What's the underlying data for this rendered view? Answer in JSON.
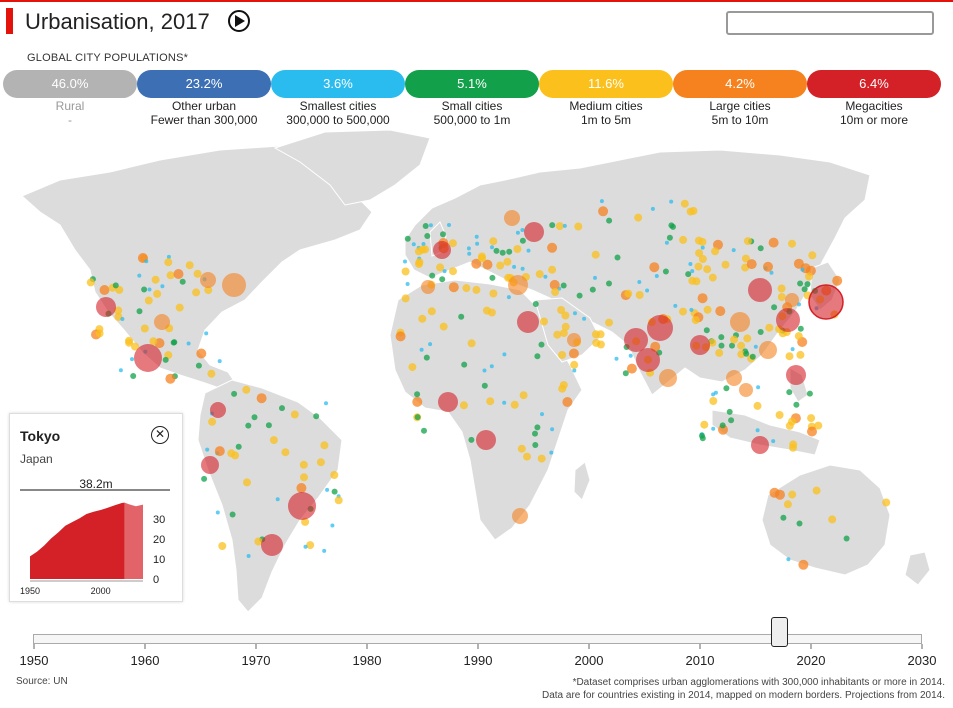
{
  "title": "Urbanisation, 2017",
  "search": {
    "value": ""
  },
  "subtitle": "GLOBAL CITY POPULATIONS*",
  "categories": [
    {
      "pct": "46.0%",
      "name": "Rural",
      "range": "-",
      "color": "#b3b3b3"
    },
    {
      "pct": "23.2%",
      "name": "Other urban",
      "range": "Fewer than 300,000",
      "color": "#3d6fb4"
    },
    {
      "pct": "3.6%",
      "name": "Smallest cities",
      "range": "300,000 to 500,000",
      "color": "#2bbcef"
    },
    {
      "pct": "5.1%",
      "name": "Small cities",
      "range": "500,000 to 1m",
      "color": "#12a14a"
    },
    {
      "pct": "11.6%",
      "name": "Medium cities",
      "range": "1m to 5m",
      "color": "#fbc01c"
    },
    {
      "pct": "4.2%",
      "name": "Large cities",
      "range": "5m to 10m",
      "color": "#f5821f"
    },
    {
      "pct": "6.4%",
      "name": "Megacities",
      "range": "10m or more",
      "color": "#d42027"
    }
  ],
  "panel": {
    "city": "Tokyo",
    "country": "Japan",
    "value": "38.2m",
    "chart_data": {
      "type": "area",
      "x": [
        1950,
        1955,
        1960,
        1965,
        1970,
        1975,
        1980,
        1985,
        1990,
        1995,
        2000,
        2005,
        2010,
        2015,
        2017,
        2020,
        2025,
        2030
      ],
      "y": [
        11.3,
        13.7,
        16.7,
        20.3,
        23.3,
        26.6,
        28.5,
        30.3,
        32.5,
        33.6,
        34.5,
        35.6,
        36.9,
        38.0,
        38.2,
        37.4,
        36.4,
        37.2
      ],
      "current_x": 2017,
      "ylim": [
        0,
        40
      ],
      "yticks": [
        "30",
        "20",
        "10",
        "0"
      ],
      "xticks": [
        "1950",
        "2000"
      ]
    }
  },
  "timeline": {
    "years": [
      "1950",
      "1960",
      "1970",
      "1980",
      "1990",
      "2000",
      "2010",
      "2020",
      "2030"
    ],
    "selected": 2017
  },
  "source": "Source: UN",
  "footnote_1": "*Dataset comprises urban agglomerations with 300,000 inhabitants or more in 2014.",
  "footnote_2": "Data are for countries existing in 2014, mapped on modern borders. Projections from 2014."
}
